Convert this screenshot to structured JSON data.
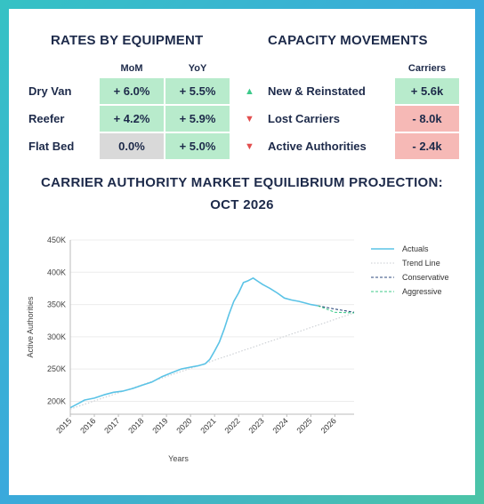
{
  "rates": {
    "title": "RATES BY EQUIPMENT",
    "columns": [
      "MoM",
      "YoY"
    ],
    "rows": [
      {
        "label": "Dry Van",
        "mom": "+ 6.0%",
        "yoy": "+ 5.5%",
        "mom_color": "#b8ebcc",
        "yoy_color": "#b8ebcc"
      },
      {
        "label": "Reefer",
        "mom": "+ 4.2%",
        "yoy": "+ 5.9%",
        "mom_color": "#b8ebcc",
        "yoy_color": "#b8ebcc"
      },
      {
        "label": "Flat Bed",
        "mom": "0.0%",
        "yoy": "+ 5.0%",
        "mom_color": "#d9d9d9",
        "yoy_color": "#b8ebcc"
      }
    ]
  },
  "capacity": {
    "title": "CAPACITY MOVEMENTS",
    "column": "Carriers",
    "rows": [
      {
        "label": "New & Reinstated",
        "value": "+ 5.6k",
        "direction": "up",
        "color": "#b8ebcc"
      },
      {
        "label": "Lost Carriers",
        "value": "- 8.0k",
        "direction": "down",
        "color": "#f6b9b6"
      },
      {
        "label": "Active Authorities",
        "value": "- 2.4k",
        "direction": "down",
        "color": "#f6b9b6"
      }
    ]
  },
  "chart_data": {
    "type": "line",
    "title_line1": "CARRIER AUTHORITY MARKET EQUILIBRIUM PROJECTION:",
    "title_line2": "OCT 2026",
    "xlabel": "Years",
    "ylabel": "Active Authorities",
    "xlim": [
      2015,
      2026.8
    ],
    "ylim": [
      180000,
      450000
    ],
    "yticks": [
      200000,
      250000,
      300000,
      350000,
      400000,
      450000
    ],
    "ytick_labels": [
      "200K",
      "250K",
      "300K",
      "350K",
      "400K",
      "450K"
    ],
    "xticks": [
      2015,
      2016,
      2017,
      2018,
      2019,
      2020,
      2021,
      2022,
      2023,
      2024,
      2025,
      2026
    ],
    "grid": "horizontal",
    "legend_position": "right",
    "series": [
      {
        "name": "Actuals",
        "color": "#5bc3e6",
        "style": "solid",
        "x": [
          2015.0,
          2015.3,
          2015.6,
          2016.0,
          2016.4,
          2016.8,
          2017.2,
          2017.6,
          2018.0,
          2018.4,
          2018.8,
          2019.2,
          2019.6,
          2020.0,
          2020.3,
          2020.6,
          2020.8,
          2021.0,
          2021.2,
          2021.4,
          2021.6,
          2021.8,
          2022.0,
          2022.2,
          2022.4,
          2022.6,
          2022.8,
          2023.0,
          2023.3,
          2023.6,
          2023.9,
          2024.2,
          2024.5,
          2024.8,
          2025.0,
          2025.3
        ],
        "y": [
          190000,
          196000,
          202000,
          205000,
          210000,
          214000,
          216000,
          220000,
          225000,
          230000,
          238000,
          244000,
          250000,
          253000,
          255000,
          258000,
          265000,
          278000,
          292000,
          312000,
          335000,
          355000,
          368000,
          384000,
          387000,
          391000,
          386000,
          381000,
          375000,
          368000,
          360000,
          357000,
          355000,
          352000,
          350000,
          348000
        ]
      },
      {
        "name": "Trend Line",
        "color": "#c9cdd2",
        "style": "dotted",
        "x": [
          2015.0,
          2026.8
        ],
        "y": [
          188000,
          337000
        ]
      },
      {
        "name": "Conservative",
        "color": "#2c4a7c",
        "style": "dashed",
        "x": [
          2025.3,
          2026.0,
          2026.8
        ],
        "y": [
          348000,
          343000,
          338000
        ]
      },
      {
        "name": "Aggressive",
        "color": "#3cc98a",
        "style": "dashed",
        "x": [
          2025.3,
          2026.0,
          2026.8
        ],
        "y": [
          348000,
          338000,
          337000
        ]
      }
    ]
  }
}
